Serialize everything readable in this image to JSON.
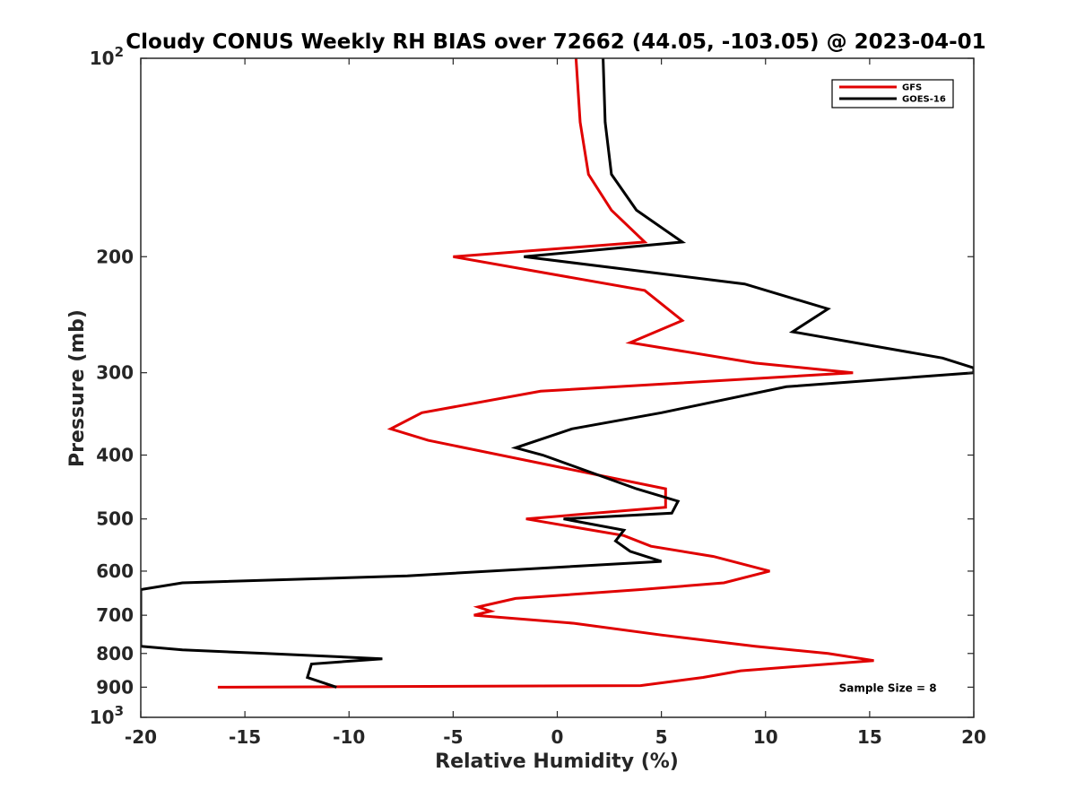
{
  "chart_data": {
    "type": "line",
    "title": "Cloudy CONUS Weekly RH BIAS over 72662 (44.05, -103.05) @ 2023-04-01",
    "xlabel": "Relative Humidity (%)",
    "ylabel": "Pressure (mb)",
    "xlim": [
      -20,
      20
    ],
    "ylim": [
      100,
      1000
    ],
    "yscale": "log",
    "yaxis_reversed": true,
    "xticks": [
      -20,
      -15,
      -10,
      -5,
      0,
      5,
      10,
      15,
      20
    ],
    "xtick_labels": [
      "-20",
      "-15",
      "-10",
      "-5",
      "0",
      "5",
      "10",
      "15",
      "20"
    ],
    "yticks": [
      100,
      200,
      300,
      400,
      500,
      600,
      700,
      800,
      900,
      1000
    ],
    "ytick_labels": [
      "10^2",
      "200",
      "300",
      "400",
      "500",
      "600",
      "700",
      "800",
      "900",
      "10^3"
    ],
    "grid": false,
    "legend_position": "top-right",
    "series": [
      {
        "name": "GFS",
        "color": "#e00000",
        "x": [
          0.9,
          1.1,
          1.5,
          2.6,
          4.2,
          -5.0,
          4.2,
          6.0,
          3.5,
          9.5,
          14.2,
          -0.8,
          -6.5,
          -8.0,
          -6.2,
          5.2,
          5.2,
          -1.5,
          3.2,
          4.5,
          7.5,
          10.2,
          8.0,
          4.0,
          -2.0,
          -3.8,
          -3.2,
          -4.0,
          0.8,
          5.0,
          9.5,
          13.0,
          15.2,
          8.8,
          7.0,
          4.0,
          -16.3
        ],
        "y": [
          100,
          125,
          150,
          170,
          190,
          200,
          225,
          250,
          270,
          290,
          300,
          320,
          345,
          365,
          380,
          450,
          480,
          500,
          530,
          550,
          570,
          600,
          625,
          640,
          660,
          680,
          690,
          700,
          720,
          750,
          780,
          800,
          820,
          850,
          870,
          895,
          900
        ]
      },
      {
        "name": "GOES-16",
        "color": "#000000",
        "x": [
          2.2,
          2.3,
          2.6,
          3.8,
          6.0,
          -1.6,
          9.0,
          13.0,
          11.3,
          18.5,
          20.0,
          20.0,
          11.0,
          5.0,
          0.7,
          -2.0,
          -0.7,
          3.8,
          5.8,
          5.5,
          0.3,
          3.2,
          2.8,
          3.5,
          5.0,
          -7.2,
          -18.0,
          -20.0,
          -20.0,
          -18.0,
          -14.0,
          -8.4,
          -11.8,
          -11.9,
          -12.0,
          -10.6
        ],
        "y": [
          100,
          125,
          150,
          170,
          190,
          200,
          220,
          240,
          260,
          285,
          295,
          300,
          315,
          345,
          365,
          390,
          400,
          450,
          470,
          490,
          500,
          520,
          540,
          560,
          580,
          610,
          625,
          640,
          780,
          790,
          800,
          815,
          830,
          850,
          870,
          900
        ]
      }
    ],
    "annotations": [
      {
        "text": "Sample Size = 8",
        "x": 16.0,
        "y": 900
      }
    ]
  }
}
